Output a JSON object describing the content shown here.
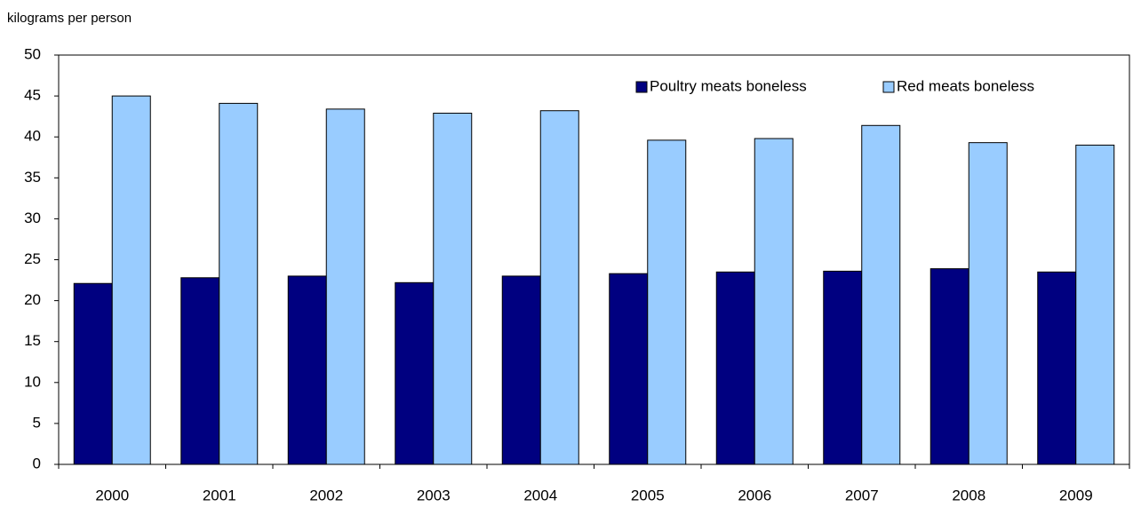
{
  "chart_data": {
    "type": "bar",
    "y_axis_label": "kilograms per person",
    "categories": [
      "2000",
      "2001",
      "2002",
      "2003",
      "2004",
      "2005",
      "2006",
      "2007",
      "2008",
      "2009"
    ],
    "series": [
      {
        "name": "Poultry meats boneless",
        "color": "#000080",
        "values": [
          22.1,
          22.8,
          23.0,
          22.2,
          23.0,
          23.3,
          23.5,
          23.6,
          23.9,
          23.5
        ]
      },
      {
        "name": "Red meats boneless",
        "color": "#99ccff",
        "values": [
          45.0,
          44.1,
          43.4,
          42.9,
          43.2,
          39.6,
          39.8,
          41.4,
          39.3,
          39.0
        ]
      }
    ],
    "ylim": [
      0,
      50
    ],
    "yticks": [
      0,
      5,
      10,
      15,
      20,
      25,
      30,
      35,
      40,
      45,
      50
    ],
    "legend": "top-right"
  }
}
